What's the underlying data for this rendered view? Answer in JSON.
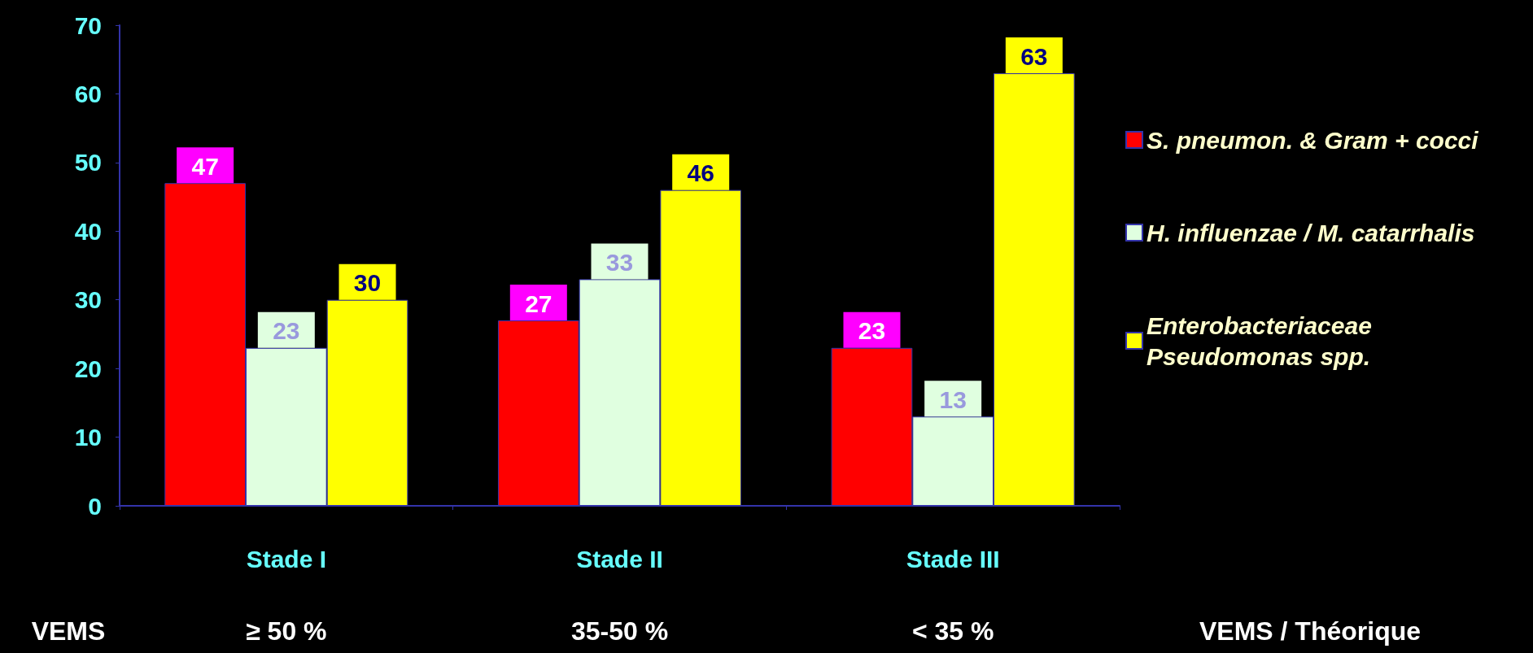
{
  "chart_data": {
    "type": "bar",
    "categories": [
      "Stade I",
      "Stade II",
      "Stade III"
    ],
    "series": [
      {
        "name": "S. pneumon. & Gram + cocci",
        "color": "#ff0000",
        "values": [
          47,
          27,
          23
        ]
      },
      {
        "name": "H. influenzae / M. catarrhalis",
        "color": "#e0ffe0",
        "values": [
          23,
          33,
          13
        ]
      },
      {
        "name": "Enterobacteriaceae Pseudomonas spp.",
        "color": "#ffff00",
        "values": [
          30,
          46,
          63
        ]
      }
    ],
    "ylim": [
      0,
      70
    ],
    "yticks": [
      0,
      10,
      20,
      30,
      40,
      50,
      60,
      70
    ],
    "grid": false,
    "legend": "right",
    "data_labels": true,
    "annotations": [
      "VEMS",
      "≥ 50 %",
      "35-50 %",
      "< 35 %",
      "VEMS / Théorique"
    ]
  }
}
